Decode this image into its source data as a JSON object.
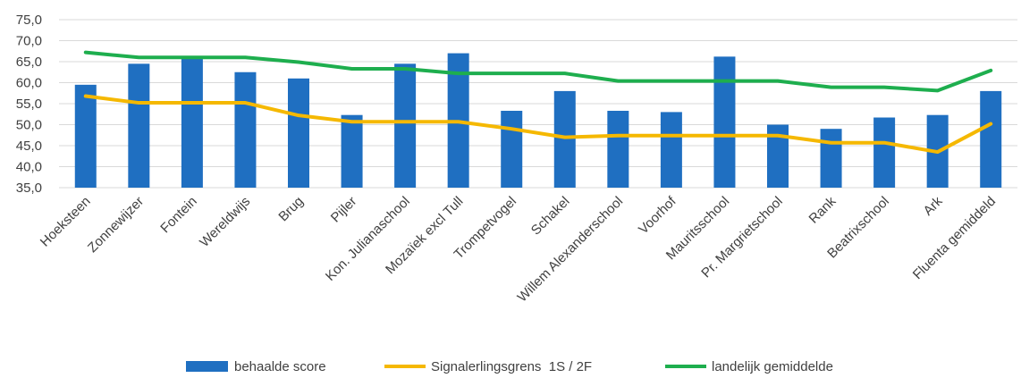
{
  "chart_data": {
    "type": "bar",
    "categories": [
      "Hoeksteen",
      "Zonnewijzer",
      "Fontein",
      "Wereldwijs",
      "Brug",
      "Pijler",
      "Kon. Julianaschool",
      "Mozaïek excl Tull",
      "Trompetvogel",
      "Schakel",
      "Willem Alexanderschool",
      "Voorhof",
      "Mauritsschool",
      "Pr. Margrietschool",
      "Rank",
      "Beatrixschool",
      "Ark",
      "Fluenta gemiddeld"
    ],
    "series": [
      {
        "name": "behaalde score",
        "kind": "bar",
        "color": "#1f6fc1",
        "values": [
          59.5,
          64.5,
          66.0,
          62.5,
          61.0,
          52.3,
          64.5,
          67.0,
          53.3,
          58.0,
          53.3,
          53.0,
          66.2,
          50.0,
          49.0,
          51.7,
          52.3,
          58.0
        ]
      },
      {
        "name": "Signalerlingsgrens  1S / 2F",
        "kind": "line",
        "color": "#f5b800",
        "values": [
          56.8,
          55.2,
          55.2,
          55.2,
          52.2,
          50.7,
          50.7,
          50.7,
          49.0,
          47.0,
          47.4,
          47.4,
          47.4,
          47.4,
          45.7,
          45.7,
          43.5,
          50.2
        ]
      },
      {
        "name": "landelijk gemiddelde",
        "kind": "line",
        "color": "#1eae4e",
        "values": [
          67.2,
          66.0,
          66.0,
          66.0,
          64.9,
          63.3,
          63.3,
          62.2,
          62.2,
          62.2,
          60.4,
          60.4,
          60.4,
          60.4,
          58.9,
          58.9,
          58.1,
          62.9
        ]
      }
    ],
    "yticks": [
      "35,0",
      "40,0",
      "45,0",
      "50,0",
      "55,0",
      "60,0",
      "65,0",
      "70,0",
      "75,0"
    ],
    "ylim": [
      35,
      75
    ],
    "grid": true,
    "legend": "bottom"
  }
}
